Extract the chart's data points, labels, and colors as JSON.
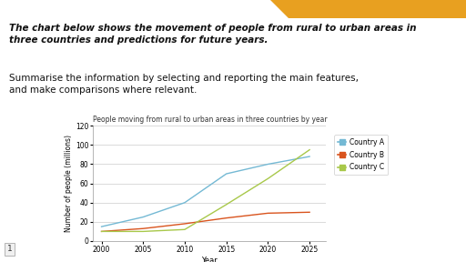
{
  "title": "People moving from rural to urban areas in three countries by year",
  "xlabel": "Year",
  "ylabel": "Number of people (millions)",
  "header_bold_italic": "The chart below shows the movement of people from rural to urban areas in\nthree countries and predictions for future years.",
  "header_normal": "Summarise the information by selecting and reporting the main features,\nand make comparisons where relevant.",
  "country_a": {
    "name": "Country A",
    "color": "#74b9d4",
    "years": [
      2000,
      2005,
      2010,
      2015,
      2020,
      2025
    ],
    "values": [
      15,
      25,
      40,
      70,
      80,
      88
    ]
  },
  "country_b": {
    "name": "Country B",
    "color": "#d9541e",
    "years": [
      2000,
      2005,
      2010,
      2015,
      2020,
      2025
    ],
    "values": [
      10,
      13,
      18,
      24,
      29,
      30
    ]
  },
  "country_c": {
    "name": "Country C",
    "color": "#a8c84a",
    "years": [
      2000,
      2005,
      2010,
      2015,
      2020,
      2025
    ],
    "values": [
      10,
      10,
      12,
      38,
      65,
      95
    ]
  },
  "ylim": [
    0,
    120
  ],
  "xlim": [
    1999,
    2027
  ],
  "yticks": [
    0,
    20,
    40,
    60,
    80,
    100,
    120
  ],
  "xticks": [
    2000,
    2005,
    2010,
    2015,
    2020,
    2025
  ],
  "background_color": "#ffffff",
  "orange_color": "#e8a020",
  "page_number": "1"
}
